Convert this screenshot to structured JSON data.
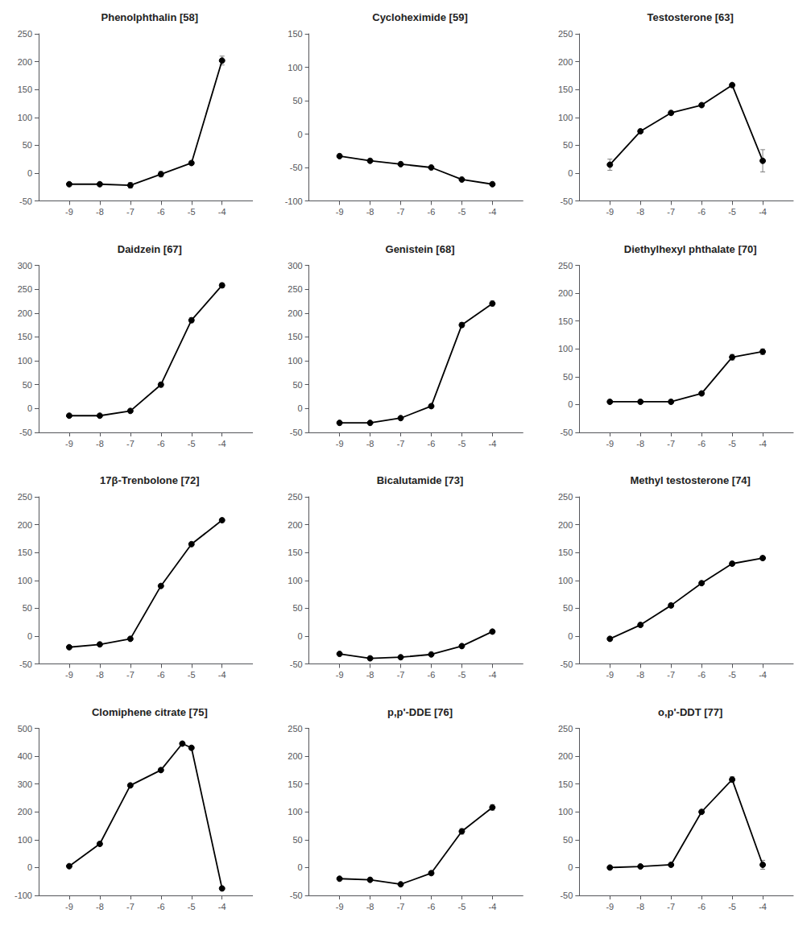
{
  "chart_data": [
    {
      "type": "line",
      "title": "Phenolphthalin [58]",
      "x": [
        -9,
        -8,
        -7,
        -6,
        -5,
        -4
      ],
      "values": [
        -20,
        -20,
        -22,
        -2,
        18,
        202
      ],
      "yerr": [
        2,
        2,
        5,
        5,
        3,
        8
      ],
      "xlim": [
        -10,
        -3
      ],
      "xticks": [
        -9,
        -8,
        -7,
        -6,
        -5,
        -4
      ],
      "ylim": [
        -50,
        250
      ],
      "yticks": [
        -50,
        0,
        50,
        100,
        150,
        200,
        250
      ],
      "color": "black",
      "marker": "circle",
      "grid": false
    },
    {
      "type": "line",
      "title": "Cycloheximide [59]",
      "x": [
        -9,
        -8,
        -7,
        -6,
        -5,
        -4
      ],
      "values": [
        -33,
        -40,
        -45,
        -50,
        -68,
        -75
      ],
      "yerr": [
        2,
        2,
        2,
        2,
        2,
        2
      ],
      "xlim": [
        -10,
        -3
      ],
      "xticks": [
        -9,
        -8,
        -7,
        -6,
        -5,
        -4
      ],
      "ylim": [
        -100,
        150
      ],
      "yticks": [
        -100,
        -50,
        0,
        50,
        100,
        150
      ],
      "color": "black",
      "marker": "circle",
      "grid": false
    },
    {
      "type": "line",
      "title": "Testosterone [63]",
      "x": [
        -9,
        -8,
        -7,
        -6,
        -5,
        -4
      ],
      "values": [
        15,
        75,
        108,
        122,
        158,
        22
      ],
      "yerr": [
        10,
        3,
        3,
        3,
        3,
        20
      ],
      "xlim": [
        -10,
        -3
      ],
      "xticks": [
        -9,
        -8,
        -7,
        -6,
        -5,
        -4
      ],
      "ylim": [
        -50,
        250
      ],
      "yticks": [
        -50,
        0,
        50,
        100,
        150,
        200,
        250
      ],
      "color": "black",
      "marker": "circle",
      "grid": false
    },
    {
      "type": "line",
      "title": "Daidzein [67]",
      "x": [
        -9,
        -8,
        -7,
        -6,
        -5,
        -4
      ],
      "values": [
        -15,
        -15,
        -5,
        50,
        185,
        258
      ],
      "yerr": [
        2,
        2,
        2,
        5,
        5,
        5
      ],
      "xlim": [
        -10,
        -3
      ],
      "xticks": [
        -9,
        -8,
        -7,
        -6,
        -5,
        -4
      ],
      "ylim": [
        -50,
        300
      ],
      "yticks": [
        -50,
        0,
        50,
        100,
        150,
        200,
        250,
        300
      ],
      "color": "black",
      "marker": "circle",
      "grid": false
    },
    {
      "type": "line",
      "title": "Genistein [68]",
      "x": [
        -9,
        -8,
        -7,
        -6,
        -5,
        -4
      ],
      "values": [
        -30,
        -30,
        -20,
        5,
        175,
        220
      ],
      "yerr": [
        2,
        2,
        2,
        2,
        5,
        5
      ],
      "xlim": [
        -10,
        -3
      ],
      "xticks": [
        -9,
        -8,
        -7,
        -6,
        -5,
        -4
      ],
      "ylim": [
        -50,
        300
      ],
      "yticks": [
        -50,
        0,
        50,
        100,
        150,
        200,
        250,
        300
      ],
      "color": "black",
      "marker": "circle",
      "grid": false
    },
    {
      "type": "line",
      "title": "Diethylhexyl phthalate [70]",
      "x": [
        -9,
        -8,
        -7,
        -6,
        -5,
        -4
      ],
      "values": [
        5,
        5,
        5,
        20,
        85,
        95
      ],
      "yerr": [
        3,
        3,
        3,
        3,
        5,
        5
      ],
      "xlim": [
        -10,
        -3
      ],
      "xticks": [
        -9,
        -8,
        -7,
        -6,
        -5,
        -4
      ],
      "ylim": [
        -50,
        250
      ],
      "yticks": [
        -50,
        0,
        50,
        100,
        150,
        200,
        250
      ],
      "color": "black",
      "marker": "circle",
      "grid": false
    },
    {
      "type": "line",
      "title": "17β-Trenbolone [72]",
      "x": [
        -9,
        -8,
        -7,
        -6,
        -5,
        -4
      ],
      "values": [
        -20,
        -15,
        -5,
        90,
        165,
        208
      ],
      "yerr": [
        2,
        2,
        2,
        3,
        3,
        3
      ],
      "xlim": [
        -10,
        -3
      ],
      "xticks": [
        -9,
        -8,
        -7,
        -6,
        -5,
        -4
      ],
      "ylim": [
        -50,
        250
      ],
      "yticks": [
        -50,
        0,
        50,
        100,
        150,
        200,
        250
      ],
      "color": "black",
      "marker": "circle",
      "grid": false
    },
    {
      "type": "line",
      "title": "Bicalutamide [73]",
      "x": [
        -9,
        -8,
        -7,
        -6,
        -5,
        -4
      ],
      "values": [
        -32,
        -40,
        -38,
        -33,
        -18,
        8
      ],
      "yerr": [
        2,
        2,
        2,
        2,
        2,
        2
      ],
      "xlim": [
        -10,
        -3
      ],
      "xticks": [
        -9,
        -8,
        -7,
        -6,
        -5,
        -4
      ],
      "ylim": [
        -50,
        250
      ],
      "yticks": [
        -50,
        0,
        50,
        100,
        150,
        200,
        250
      ],
      "color": "black",
      "marker": "circle",
      "grid": false
    },
    {
      "type": "line",
      "title": "Methyl testosterone [74]",
      "x": [
        -9,
        -8,
        -7,
        -6,
        -5,
        -4
      ],
      "values": [
        -5,
        20,
        55,
        95,
        130,
        140
      ],
      "yerr": [
        3,
        3,
        3,
        3,
        3,
        3
      ],
      "xlim": [
        -10,
        -3
      ],
      "xticks": [
        -9,
        -8,
        -7,
        -6,
        -5,
        -4
      ],
      "ylim": [
        -50,
        250
      ],
      "yticks": [
        -50,
        0,
        50,
        100,
        150,
        200,
        250
      ],
      "color": "black",
      "marker": "circle",
      "grid": false
    },
    {
      "type": "line",
      "title": "Clomiphene citrate [75]",
      "x": [
        -9,
        -8,
        -7,
        -6,
        -5.3,
        -5,
        -4
      ],
      "values": [
        5,
        85,
        295,
        350,
        445,
        430,
        -75
      ],
      "yerr": [
        2,
        3,
        5,
        5,
        5,
        5,
        5
      ],
      "xlim": [
        -10,
        -3
      ],
      "xticks": [
        -9,
        -8,
        -7,
        -6,
        -5,
        -4
      ],
      "ylim": [
        -100,
        500
      ],
      "yticks": [
        -100,
        0,
        100,
        200,
        300,
        400,
        500
      ],
      "color": "black",
      "marker": "circle",
      "grid": false
    },
    {
      "type": "line",
      "title": "p,p'-DDE [76]",
      "x": [
        -9,
        -8,
        -7,
        -6,
        -5,
        -4
      ],
      "values": [
        -20,
        -22,
        -30,
        -10,
        65,
        108
      ],
      "yerr": [
        2,
        2,
        2,
        3,
        5,
        5
      ],
      "xlim": [
        -10,
        -3
      ],
      "xticks": [
        -9,
        -8,
        -7,
        -6,
        -5,
        -4
      ],
      "ylim": [
        -50,
        250
      ],
      "yticks": [
        -50,
        0,
        50,
        100,
        150,
        200,
        250
      ],
      "color": "black",
      "marker": "circle",
      "grid": false
    },
    {
      "type": "line",
      "title": "o,p'-DDT [77]",
      "x": [
        -9,
        -8,
        -7,
        -6,
        -5,
        -4
      ],
      "values": [
        0,
        2,
        5,
        100,
        158,
        5
      ],
      "yerr": [
        2,
        2,
        2,
        3,
        5,
        8
      ],
      "xlim": [
        -10,
        -3
      ],
      "xticks": [
        -9,
        -8,
        -7,
        -6,
        -5,
        -4
      ],
      "ylim": [
        -50,
        250
      ],
      "yticks": [
        -50,
        0,
        50,
        100,
        150,
        200,
        250
      ],
      "color": "black",
      "marker": "circle",
      "grid": false
    }
  ]
}
